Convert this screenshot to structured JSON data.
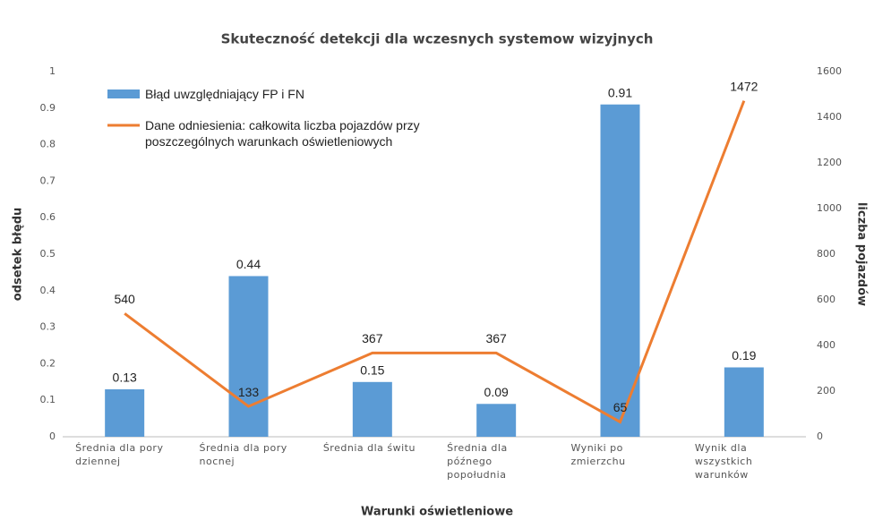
{
  "chart_data": {
    "type": "bar_line",
    "title": "Skuteczność detekcji dla wczesnych systemow wizyjnych",
    "xlabel": "Warunki oświetleniowe",
    "ylabel": "odsetek błędu",
    "y2label": "liczba pojazdów",
    "categories": [
      "Średnia dla pory dziennej",
      "Średnia dla pory nocnej",
      "Średnia dla świtu",
      "Średnia dla późnego popołudnia",
      "Wyniki po zmierzchu",
      "Wynik dla wszystkich warunków"
    ],
    "series": [
      {
        "name": "Błąd uwzględniający FP i FN",
        "type": "bar",
        "color": "#5b9bd5",
        "values": [
          0.13,
          0.44,
          0.15,
          0.09,
          0.91,
          0.19
        ]
      },
      {
        "name": "Dane odniesienia: całkowita liczba pojazdów przy poszczególnych warunkach oświetleniowych",
        "type": "line",
        "axis": "y2",
        "color": "#ed7d31",
        "values": [
          540,
          133,
          367,
          367,
          65,
          1472
        ]
      }
    ],
    "ylim": [
      0,
      1
    ],
    "yticks": [
      0,
      0.1,
      0.2,
      0.3,
      0.4,
      0.5,
      0.6,
      0.7,
      0.8,
      0.9,
      1
    ],
    "y2lim": [
      0,
      1600
    ],
    "y2ticks": [
      0,
      200,
      400,
      600,
      800,
      1000,
      1200,
      1400,
      1600
    ],
    "legend": "top-left"
  }
}
